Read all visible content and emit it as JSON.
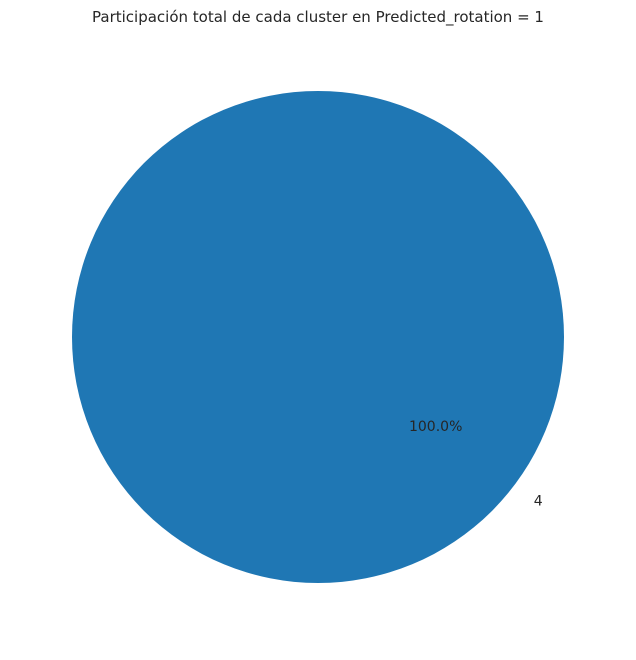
{
  "chart_data": {
    "type": "pie",
    "title": "Participación total de cada cluster en Predicted_rotation = 1",
    "slices": [
      {
        "label": "4",
        "value": 100.0,
        "pct_label": "100.0%",
        "color": "#1f77b4"
      }
    ]
  }
}
